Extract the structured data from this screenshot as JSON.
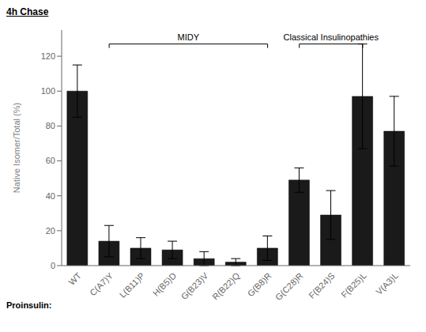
{
  "chart_data": {
    "type": "bar",
    "title": "4h Chase",
    "xlabel": "Proinsulin:",
    "ylabel": "Native Isomer/Total (%)",
    "categories": [
      "WT",
      "C(A7)Y",
      "L(B11)P",
      "H(B5)D",
      "G(B23)V",
      "R(B22)Q",
      "G(B8)R",
      "G(C28)R",
      "F(B24)S",
      "F(B25)L",
      "V(A3)L"
    ],
    "values": [
      100,
      14,
      10,
      9,
      4,
      2,
      10,
      49,
      29,
      97,
      77
    ],
    "errors": [
      15,
      9,
      6,
      5,
      4,
      2,
      7,
      7,
      14,
      30,
      20
    ],
    "color": "#1a1a1a",
    "ylim": [
      0,
      135
    ],
    "yticks": [
      0,
      20,
      40,
      60,
      80,
      100,
      120
    ],
    "grid": false,
    "annotations": [
      {
        "text": "MIDY",
        "from": "C(A7)Y",
        "to": "G(B8)R",
        "y": 127
      },
      {
        "text": "Classical Insulinopathies",
        "from": "G(C28)R",
        "to": "F(B25)L",
        "y": 127
      }
    ]
  }
}
